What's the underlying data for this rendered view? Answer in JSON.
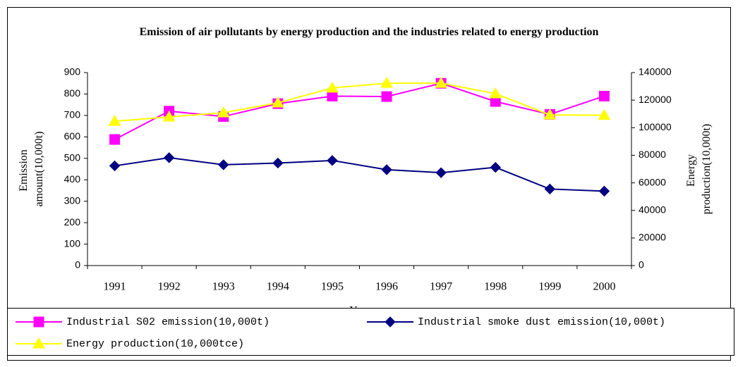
{
  "chart_data": {
    "type": "line",
    "title": "Emission of air pollutants by energy production and the industries related to energy production",
    "x_label": "Year",
    "y_label": [
      "Emission",
      "amount(10,000t)"
    ],
    "y2_label": [
      "Energy",
      "production(10,000t)"
    ],
    "categories": [
      "1991",
      "1992",
      "1993",
      "1994",
      "1995",
      "1996",
      "1997",
      "1998",
      "1999",
      "2000"
    ],
    "series": [
      {
        "name": "Industrial S02 emission(10,000t)",
        "color": "#ff00ff",
        "marker": "square",
        "values": [
          588,
          720,
          695,
          755,
          790,
          788,
          850,
          765,
          705,
          790
        ]
      },
      {
        "name": "Industrial smoke dust emission(10,000t)",
        "color": "#000080",
        "marker": "diamond",
        "values": [
          465,
          503,
          470,
          478,
          490,
          447,
          433,
          458,
          357,
          347
        ]
      },
      {
        "name": "Energy production(10,000tce)",
        "color": "#ffff00",
        "marker": "triangle",
        "axis": "y2",
        "values": [
          104700,
          107800,
          110900,
          118000,
          128800,
          132300,
          132300,
          124700,
          109300,
          109000
        ]
      }
    ],
    "ylim": [
      0,
      900
    ],
    "yticks": [
      0,
      100,
      200,
      300,
      400,
      500,
      600,
      700,
      800,
      900
    ],
    "y2lim": [
      0,
      140000
    ],
    "y2ticks": [
      0,
      20000,
      40000,
      60000,
      80000,
      100000,
      120000,
      140000
    ],
    "grid": false
  }
}
